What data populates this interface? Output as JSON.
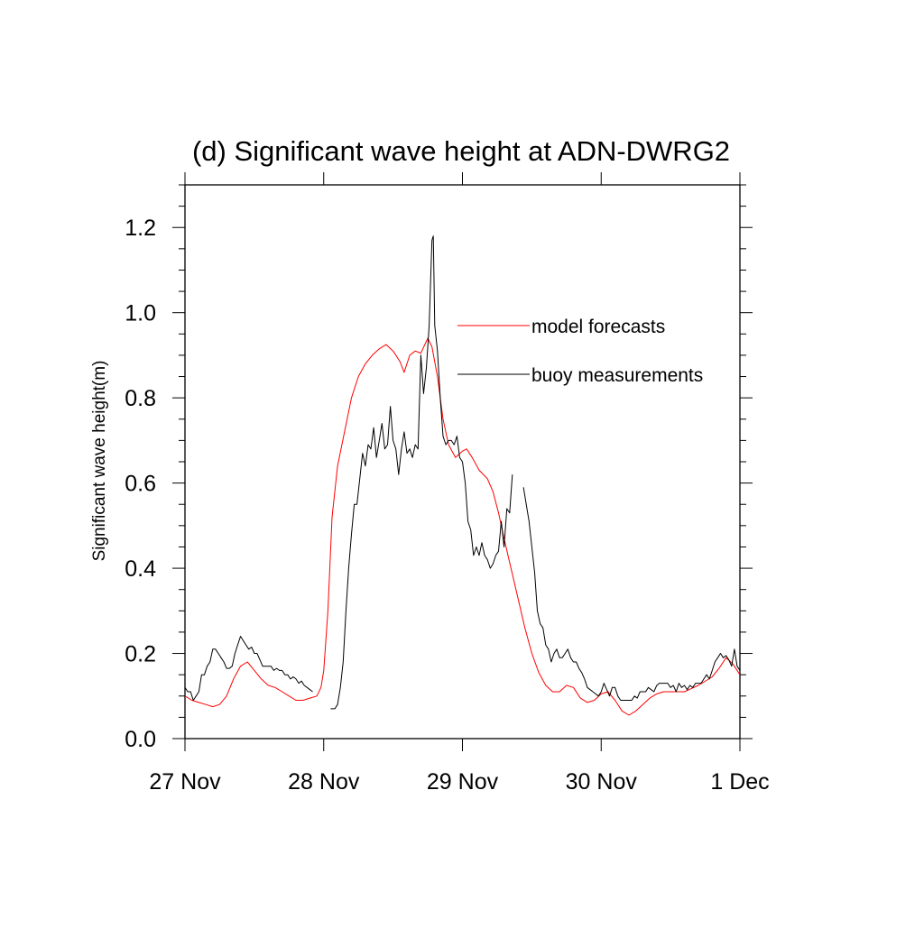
{
  "chart_data": {
    "type": "line",
    "title": "(d) Significant wave height at ADN-DWRG2",
    "xlabel": "",
    "ylabel": "Significant wave height(m)",
    "x_unit": "days since 27 Nov",
    "xlim": [
      0,
      4
    ],
    "ylim": [
      0,
      1.3
    ],
    "x_ticks": [
      {
        "value": 0,
        "label": "27 Nov"
      },
      {
        "value": 1,
        "label": "28 Nov"
      },
      {
        "value": 2,
        "label": "29 Nov"
      },
      {
        "value": 3,
        "label": "30 Nov"
      },
      {
        "value": 4,
        "label": "1 Dec"
      }
    ],
    "y_ticks": [
      {
        "value": 0.0,
        "label": "0.0"
      },
      {
        "value": 0.2,
        "label": "0.2"
      },
      {
        "value": 0.4,
        "label": "0.4"
      },
      {
        "value": 0.6,
        "label": "0.6"
      },
      {
        "value": 0.8,
        "label": "0.8"
      },
      {
        "value": 1.0,
        "label": "1.0"
      },
      {
        "value": 1.2,
        "label": "1.2"
      }
    ],
    "grid": false,
    "legend_position": "upper-right inside plot",
    "series": [
      {
        "name": "model forecasts",
        "color": "#ff0000",
        "points": [
          [
            0.0,
            0.1
          ],
          [
            0.05,
            0.09
          ],
          [
            0.1,
            0.085
          ],
          [
            0.15,
            0.08
          ],
          [
            0.2,
            0.075
          ],
          [
            0.25,
            0.08
          ],
          [
            0.3,
            0.1
          ],
          [
            0.35,
            0.14
          ],
          [
            0.4,
            0.17
          ],
          [
            0.45,
            0.18
          ],
          [
            0.5,
            0.16
          ],
          [
            0.55,
            0.14
          ],
          [
            0.6,
            0.125
          ],
          [
            0.65,
            0.12
          ],
          [
            0.7,
            0.11
          ],
          [
            0.75,
            0.1
          ],
          [
            0.8,
            0.09
          ],
          [
            0.85,
            0.09
          ],
          [
            0.9,
            0.095
          ],
          [
            0.95,
            0.1
          ],
          [
            0.98,
            0.12
          ],
          [
            1.0,
            0.16
          ],
          [
            1.03,
            0.3
          ],
          [
            1.06,
            0.52
          ],
          [
            1.1,
            0.64
          ],
          [
            1.15,
            0.72
          ],
          [
            1.2,
            0.8
          ],
          [
            1.25,
            0.85
          ],
          [
            1.3,
            0.88
          ],
          [
            1.35,
            0.9
          ],
          [
            1.4,
            0.915
          ],
          [
            1.45,
            0.925
          ],
          [
            1.5,
            0.91
          ],
          [
            1.55,
            0.885
          ],
          [
            1.58,
            0.86
          ],
          [
            1.62,
            0.9
          ],
          [
            1.66,
            0.91
          ],
          [
            1.7,
            0.905
          ],
          [
            1.75,
            0.94
          ],
          [
            1.78,
            0.92
          ],
          [
            1.82,
            0.85
          ],
          [
            1.86,
            0.75
          ],
          [
            1.9,
            0.69
          ],
          [
            1.95,
            0.66
          ],
          [
            2.0,
            0.675
          ],
          [
            2.03,
            0.68
          ],
          [
            2.07,
            0.66
          ],
          [
            2.12,
            0.63
          ],
          [
            2.18,
            0.61
          ],
          [
            2.22,
            0.58
          ],
          [
            2.26,
            0.53
          ],
          [
            2.3,
            0.47
          ],
          [
            2.35,
            0.4
          ],
          [
            2.4,
            0.33
          ],
          [
            2.45,
            0.26
          ],
          [
            2.5,
            0.2
          ],
          [
            2.55,
            0.155
          ],
          [
            2.6,
            0.125
          ],
          [
            2.65,
            0.11
          ],
          [
            2.7,
            0.11
          ],
          [
            2.75,
            0.125
          ],
          [
            2.8,
            0.12
          ],
          [
            2.85,
            0.095
          ],
          [
            2.9,
            0.085
          ],
          [
            2.95,
            0.09
          ],
          [
            3.0,
            0.105
          ],
          [
            3.05,
            0.11
          ],
          [
            3.1,
            0.09
          ],
          [
            3.15,
            0.065
          ],
          [
            3.2,
            0.055
          ],
          [
            3.25,
            0.065
          ],
          [
            3.3,
            0.08
          ],
          [
            3.35,
            0.095
          ],
          [
            3.4,
            0.105
          ],
          [
            3.45,
            0.11
          ],
          [
            3.5,
            0.11
          ],
          [
            3.6,
            0.11
          ],
          [
            3.7,
            0.125
          ],
          [
            3.8,
            0.145
          ],
          [
            3.85,
            0.165
          ],
          [
            3.9,
            0.19
          ],
          [
            3.95,
            0.175
          ],
          [
            4.0,
            0.15
          ]
        ]
      },
      {
        "name": "buoy measurements",
        "color": "#000000",
        "segments": [
          [
            [
              0.0,
              0.12
            ],
            [
              0.02,
              0.11
            ],
            [
              0.04,
              0.11
            ],
            [
              0.06,
              0.09
            ],
            [
              0.08,
              0.1
            ],
            [
              0.1,
              0.11
            ],
            [
              0.12,
              0.15
            ],
            [
              0.14,
              0.15
            ],
            [
              0.16,
              0.17
            ],
            [
              0.18,
              0.18
            ],
            [
              0.2,
              0.21
            ],
            [
              0.22,
              0.21
            ],
            [
              0.24,
              0.2
            ],
            [
              0.26,
              0.19
            ],
            [
              0.28,
              0.18
            ],
            [
              0.3,
              0.165
            ],
            [
              0.32,
              0.165
            ],
            [
              0.34,
              0.17
            ],
            [
              0.36,
              0.2
            ],
            [
              0.38,
              0.22
            ],
            [
              0.4,
              0.24
            ],
            [
              0.42,
              0.23
            ],
            [
              0.44,
              0.22
            ],
            [
              0.46,
              0.21
            ],
            [
              0.48,
              0.215
            ],
            [
              0.5,
              0.2
            ],
            [
              0.52,
              0.2
            ],
            [
              0.54,
              0.185
            ],
            [
              0.56,
              0.17
            ],
            [
              0.58,
              0.17
            ],
            [
              0.6,
              0.17
            ],
            [
              0.62,
              0.17
            ],
            [
              0.64,
              0.16
            ],
            [
              0.66,
              0.165
            ],
            [
              0.68,
              0.16
            ],
            [
              0.7,
              0.16
            ],
            [
              0.72,
              0.15
            ],
            [
              0.74,
              0.15
            ],
            [
              0.76,
              0.14
            ],
            [
              0.78,
              0.145
            ],
            [
              0.8,
              0.14
            ],
            [
              0.82,
              0.13
            ],
            [
              0.84,
              0.135
            ],
            [
              0.86,
              0.125
            ],
            [
              0.88,
              0.12
            ],
            [
              0.9,
              0.115
            ],
            [
              0.92,
              0.11
            ]
          ],
          [
            [
              1.05,
              0.07
            ],
            [
              1.08,
              0.07
            ],
            [
              1.1,
              0.08
            ],
            [
              1.12,
              0.12
            ],
            [
              1.14,
              0.18
            ],
            [
              1.16,
              0.3
            ],
            [
              1.18,
              0.4
            ],
            [
              1.2,
              0.48
            ],
            [
              1.22,
              0.55
            ],
            [
              1.24,
              0.55
            ],
            [
              1.26,
              0.61
            ],
            [
              1.28,
              0.67
            ],
            [
              1.3,
              0.64
            ],
            [
              1.32,
              0.69
            ],
            [
              1.34,
              0.68
            ],
            [
              1.36,
              0.73
            ],
            [
              1.38,
              0.66
            ],
            [
              1.4,
              0.7
            ],
            [
              1.42,
              0.74
            ],
            [
              1.44,
              0.68
            ],
            [
              1.46,
              0.69
            ],
            [
              1.48,
              0.78
            ],
            [
              1.5,
              0.7
            ],
            [
              1.52,
              0.68
            ],
            [
              1.54,
              0.62
            ],
            [
              1.56,
              0.68
            ],
            [
              1.58,
              0.72
            ],
            [
              1.6,
              0.67
            ],
            [
              1.62,
              0.68
            ],
            [
              1.64,
              0.66
            ],
            [
              1.66,
              0.69
            ],
            [
              1.68,
              0.68
            ],
            [
              1.7,
              0.9
            ],
            [
              1.72,
              0.81
            ],
            [
              1.74,
              0.87
            ],
            [
              1.76,
              0.97
            ],
            [
              1.78,
              1.17
            ],
            [
              1.79,
              1.18
            ],
            [
              1.8,
              0.97
            ],
            [
              1.82,
              0.91
            ],
            [
              1.84,
              0.8
            ],
            [
              1.86,
              0.71
            ],
            [
              1.88,
              0.69
            ],
            [
              1.9,
              0.7
            ],
            [
              1.92,
              0.7
            ],
            [
              1.94,
              0.69
            ],
            [
              1.96,
              0.71
            ],
            [
              1.98,
              0.66
            ],
            [
              2.0,
              0.65
            ],
            [
              2.02,
              0.6
            ],
            [
              2.04,
              0.51
            ],
            [
              2.06,
              0.49
            ],
            [
              2.08,
              0.43
            ],
            [
              2.1,
              0.45
            ],
            [
              2.12,
              0.43
            ],
            [
              2.14,
              0.46
            ],
            [
              2.16,
              0.43
            ],
            [
              2.18,
              0.42
            ],
            [
              2.2,
              0.4
            ],
            [
              2.22,
              0.41
            ],
            [
              2.24,
              0.43
            ],
            [
              2.26,
              0.44
            ],
            [
              2.28,
              0.51
            ],
            [
              2.3,
              0.45
            ],
            [
              2.32,
              0.54
            ],
            [
              2.34,
              0.53
            ],
            [
              2.36,
              0.62
            ]
          ],
          [
            [
              2.44,
              0.59
            ],
            [
              2.46,
              0.55
            ],
            [
              2.48,
              0.51
            ],
            [
              2.5,
              0.45
            ],
            [
              2.52,
              0.39
            ],
            [
              2.54,
              0.3
            ],
            [
              2.56,
              0.27
            ],
            [
              2.58,
              0.26
            ],
            [
              2.6,
              0.22
            ],
            [
              2.62,
              0.21
            ],
            [
              2.64,
              0.18
            ],
            [
              2.66,
              0.2
            ],
            [
              2.68,
              0.21
            ],
            [
              2.7,
              0.19
            ],
            [
              2.72,
              0.19
            ],
            [
              2.74,
              0.2
            ],
            [
              2.76,
              0.21
            ],
            [
              2.78,
              0.19
            ],
            [
              2.8,
              0.18
            ],
            [
              2.82,
              0.18
            ],
            [
              2.84,
              0.165
            ],
            [
              2.86,
              0.155
            ],
            [
              2.88,
              0.14
            ],
            [
              2.9,
              0.12
            ],
            [
              2.92,
              0.115
            ],
            [
              2.94,
              0.11
            ],
            [
              2.96,
              0.105
            ],
            [
              2.98,
              0.1
            ],
            [
              3.0,
              0.11
            ],
            [
              3.02,
              0.13
            ],
            [
              3.04,
              0.115
            ],
            [
              3.06,
              0.1
            ],
            [
              3.08,
              0.12
            ],
            [
              3.1,
              0.12
            ],
            [
              3.12,
              0.1
            ],
            [
              3.14,
              0.09
            ],
            [
              3.16,
              0.09
            ],
            [
              3.18,
              0.09
            ],
            [
              3.2,
              0.09
            ],
            [
              3.22,
              0.09
            ],
            [
              3.24,
              0.1
            ],
            [
              3.26,
              0.095
            ],
            [
              3.28,
              0.11
            ],
            [
              3.3,
              0.11
            ],
            [
              3.32,
              0.11
            ],
            [
              3.34,
              0.12
            ],
            [
              3.36,
              0.115
            ],
            [
              3.38,
              0.11
            ],
            [
              3.4,
              0.125
            ],
            [
              3.42,
              0.13
            ],
            [
              3.44,
              0.13
            ],
            [
              3.46,
              0.13
            ],
            [
              3.48,
              0.13
            ],
            [
              3.5,
              0.12
            ],
            [
              3.52,
              0.125
            ],
            [
              3.54,
              0.11
            ],
            [
              3.56,
              0.13
            ],
            [
              3.58,
              0.12
            ],
            [
              3.6,
              0.125
            ],
            [
              3.62,
              0.115
            ],
            [
              3.64,
              0.125
            ],
            [
              3.66,
              0.12
            ],
            [
              3.68,
              0.13
            ],
            [
              3.7,
              0.13
            ],
            [
              3.72,
              0.13
            ],
            [
              3.74,
              0.14
            ],
            [
              3.76,
              0.15
            ],
            [
              3.78,
              0.14
            ],
            [
              3.8,
              0.16
            ],
            [
              3.82,
              0.18
            ],
            [
              3.84,
              0.19
            ],
            [
              3.86,
              0.2
            ],
            [
              3.88,
              0.19
            ],
            [
              3.9,
              0.195
            ],
            [
              3.92,
              0.185
            ],
            [
              3.94,
              0.17
            ],
            [
              3.96,
              0.21
            ],
            [
              3.98,
              0.17
            ],
            [
              4.0,
              0.16
            ]
          ]
        ]
      }
    ]
  }
}
